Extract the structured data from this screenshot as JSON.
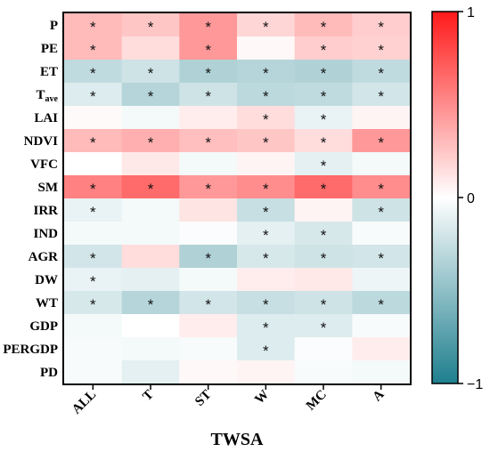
{
  "chart_data": {
    "type": "heatmap",
    "xlabel": "TWSA",
    "columns": [
      "ALL",
      "T",
      "ST",
      "W",
      "MC",
      "A"
    ],
    "rows": [
      "P",
      "PE",
      "ET",
      "T_ave",
      "LAI",
      "NDVI",
      "VFC",
      "SM",
      "IRR",
      "IND",
      "AGR",
      "DW",
      "WT",
      "GDP",
      "PERGDP",
      "PD"
    ],
    "row_label_parts": [
      [
        "P",
        ""
      ],
      [
        "PE",
        ""
      ],
      [
        "ET",
        ""
      ],
      [
        "T",
        "ave"
      ],
      [
        "LAI",
        ""
      ],
      [
        "NDVI",
        ""
      ],
      [
        "VFC",
        ""
      ],
      [
        "SM",
        ""
      ],
      [
        "IRR",
        ""
      ],
      [
        "IND",
        ""
      ],
      [
        "AGR",
        ""
      ],
      [
        "DW",
        ""
      ],
      [
        "WT",
        ""
      ],
      [
        "GDP",
        ""
      ],
      [
        "PERGDP",
        ""
      ],
      [
        "PD",
        ""
      ]
    ],
    "values": [
      [
        0.3,
        0.25,
        0.45,
        0.18,
        0.3,
        0.22
      ],
      [
        0.3,
        0.15,
        0.45,
        0.03,
        0.22,
        0.2
      ],
      [
        -0.28,
        -0.22,
        -0.35,
        -0.33,
        -0.35,
        -0.28
      ],
      [
        -0.15,
        -0.33,
        -0.22,
        -0.3,
        -0.28,
        -0.2
      ],
      [
        0.02,
        -0.05,
        0.08,
        0.15,
        -0.1,
        0.05
      ],
      [
        0.3,
        0.35,
        0.28,
        0.25,
        0.15,
        0.45
      ],
      [
        0.0,
        0.1,
        -0.05,
        0.05,
        -0.12,
        -0.05
      ],
      [
        0.55,
        0.65,
        0.45,
        0.5,
        0.65,
        0.5
      ],
      [
        -0.1,
        -0.05,
        0.12,
        -0.25,
        0.05,
        -0.22
      ],
      [
        -0.05,
        -0.05,
        -0.02,
        -0.12,
        -0.18,
        -0.03
      ],
      [
        -0.2,
        0.15,
        -0.35,
        -0.18,
        -0.22,
        -0.2
      ],
      [
        -0.1,
        -0.12,
        -0.05,
        0.08,
        0.1,
        -0.08
      ],
      [
        -0.18,
        -0.33,
        -0.2,
        -0.25,
        -0.22,
        -0.3
      ],
      [
        -0.05,
        0.0,
        0.08,
        -0.15,
        -0.15,
        -0.03
      ],
      [
        -0.03,
        -0.05,
        -0.03,
        -0.15,
        -0.02,
        0.08
      ],
      [
        -0.03,
        -0.12,
        0.03,
        0.05,
        -0.03,
        -0.05
      ]
    ],
    "significant_marker": "*",
    "significant": [
      [
        1,
        1,
        1,
        1,
        1,
        1
      ],
      [
        1,
        0,
        1,
        0,
        1,
        1
      ],
      [
        1,
        1,
        1,
        1,
        1,
        1
      ],
      [
        1,
        1,
        1,
        1,
        1,
        1
      ],
      [
        0,
        0,
        0,
        1,
        1,
        0
      ],
      [
        1,
        1,
        1,
        1,
        1,
        1
      ],
      [
        0,
        0,
        0,
        0,
        1,
        0
      ],
      [
        1,
        1,
        1,
        1,
        1,
        1
      ],
      [
        1,
        0,
        0,
        1,
        0,
        1
      ],
      [
        0,
        0,
        0,
        1,
        1,
        0
      ],
      [
        1,
        0,
        1,
        1,
        1,
        1
      ],
      [
        1,
        0,
        0,
        0,
        0,
        0
      ],
      [
        1,
        1,
        1,
        1,
        1,
        1
      ],
      [
        0,
        0,
        0,
        1,
        1,
        0
      ],
      [
        0,
        0,
        0,
        1,
        0,
        0
      ],
      [
        0,
        0,
        0,
        0,
        0,
        0
      ]
    ],
    "colorbar": {
      "min": -1,
      "max": 1,
      "ticks": [
        1,
        0,
        -1
      ],
      "tick_labels": [
        "1",
        "0",
        "−1"
      ],
      "colors": {
        "low": "#1e7f8e",
        "mid": "#ffffff",
        "high": "#ff1a1a"
      }
    }
  }
}
